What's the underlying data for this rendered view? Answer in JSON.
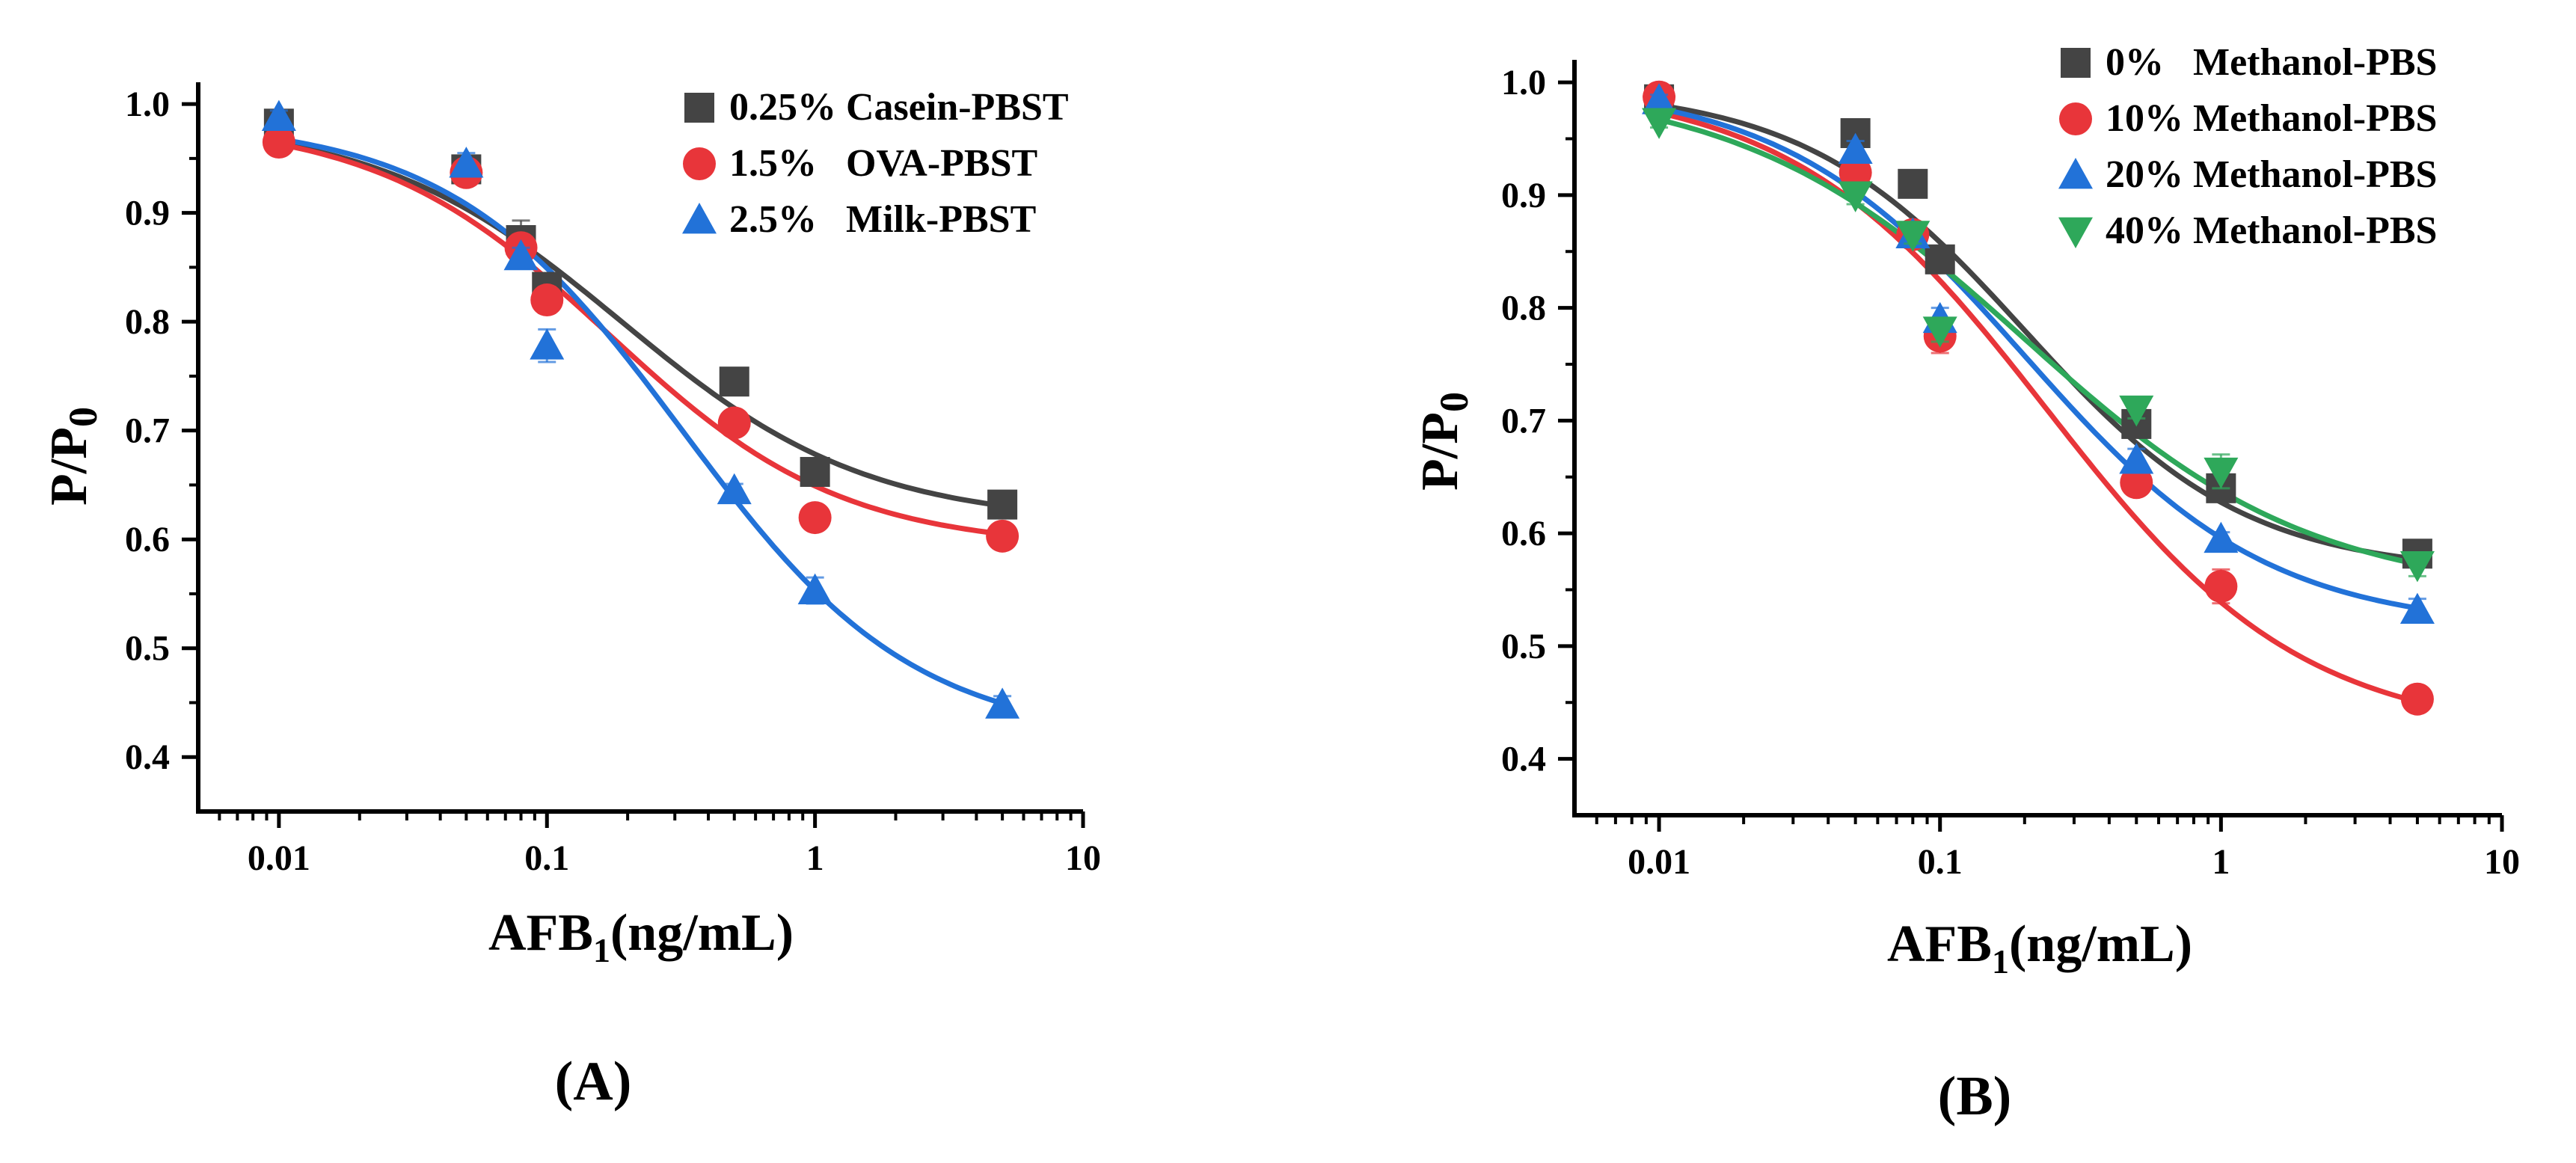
{
  "chart_data": [
    {
      "type": "scatter",
      "panel_label": "(A)",
      "xlabel_main": "AFB",
      "xlabel_sub": "1",
      "xlabel_unit": "(ng/mL)",
      "ylabel_main": "P/P",
      "ylabel_sub": "0",
      "xscale": "log",
      "xlim": [
        0.005,
        10
      ],
      "ylim": [
        0.35,
        1.02
      ],
      "xticks": [
        0.01,
        0.1,
        1,
        10
      ],
      "xtick_labels": [
        "0.01",
        "0.1",
        "1",
        "10"
      ],
      "yticks": [
        0.4,
        0.5,
        0.6,
        0.7,
        0.8,
        0.9,
        1.0
      ],
      "ytick_labels": [
        "0.4",
        "0.5",
        "0.6",
        "0.7",
        "0.8",
        "0.9",
        "1.0"
      ],
      "legend_position": "top-right",
      "series": [
        {
          "name": "0.25% Casein-PBST",
          "color": "#444444",
          "marker": "square",
          "x": [
            0.01,
            0.05,
            0.08,
            0.1,
            0.5,
            1,
            5
          ],
          "y": [
            0.982,
            0.94,
            0.875,
            0.832,
            0.745,
            0.662,
            0.632
          ],
          "err": [
            0.006,
            0.01,
            0.018,
            0.01,
            0.008,
            0.01,
            0.01
          ],
          "fit": {
            "top": 0.985,
            "bottom": 0.615,
            "ec50": 0.19,
            "hill": 0.95
          }
        },
        {
          "name": "1.5%   OVA-PBST",
          "color": "#e8353a",
          "marker": "circle",
          "x": [
            0.01,
            0.05,
            0.08,
            0.1,
            0.5,
            1,
            5
          ],
          "y": [
            0.965,
            0.937,
            0.868,
            0.82,
            0.707,
            0.62,
            0.603
          ],
          "err": [
            0.005,
            0.01,
            0.012,
            0.012,
            0.008,
            0.006,
            0.006
          ],
          "fit": {
            "top": 0.985,
            "bottom": 0.592,
            "ec50": 0.17,
            "hill": 1.0
          }
        },
        {
          "name": "2.5%   Milk-PBST",
          "color": "#2272d8",
          "marker": "triangle",
          "x": [
            0.01,
            0.05,
            0.08,
            0.1,
            0.5,
            1,
            5
          ],
          "y": [
            0.988,
            0.945,
            0.86,
            0.778,
            0.645,
            0.553,
            0.448
          ],
          "err": [
            0.006,
            0.01,
            0.008,
            0.015,
            0.006,
            0.012,
            0.008
          ],
          "fit": {
            "top": 0.985,
            "bottom": 0.415,
            "ec50": 0.32,
            "hill": 1.0
          }
        }
      ]
    },
    {
      "type": "scatter",
      "panel_label": "(B)",
      "xlabel_main": "AFB",
      "xlabel_sub": "1",
      "xlabel_unit": "(ng/mL)",
      "ylabel_main": "P/P",
      "ylabel_sub": "0",
      "xscale": "log",
      "xlim": [
        0.005,
        10
      ],
      "ylim": [
        0.35,
        1.02
      ],
      "xticks": [
        0.01,
        0.1,
        1,
        10
      ],
      "xtick_labels": [
        "0.01",
        "0.1",
        "1",
        "10"
      ],
      "yticks": [
        0.4,
        0.5,
        0.6,
        0.7,
        0.8,
        0.9,
        1.0
      ],
      "ytick_labels": [
        "0.4",
        "0.5",
        "0.6",
        "0.7",
        "0.8",
        "0.9",
        "1.0"
      ],
      "legend_position": "top-right",
      "series": [
        {
          "name": "0%   Methanol-PBS",
          "color": "#444444",
          "marker": "square",
          "x": [
            0.01,
            0.05,
            0.08,
            0.1,
            0.5,
            1,
            5
          ],
          "y": [
            0.985,
            0.955,
            0.91,
            0.843,
            0.697,
            0.64,
            0.582
          ],
          "err": [
            0.006,
            0.008,
            0.008,
            0.008,
            0.008,
            0.01,
            0.01
          ],
          "fit": {
            "top": 0.995,
            "bottom": 0.565,
            "ec50": 0.2,
            "hill": 1.1
          }
        },
        {
          "name": "10% Methanol-PBS",
          "color": "#e8353a",
          "marker": "circle",
          "x": [
            0.01,
            0.05,
            0.08,
            0.1,
            0.5,
            1,
            5
          ],
          "y": [
            0.987,
            0.92,
            0.865,
            0.775,
            0.645,
            0.553,
            0.453
          ],
          "err": [
            0.005,
            0.008,
            0.01,
            0.015,
            0.01,
            0.015,
            0.01
          ],
          "fit": {
            "top": 1.0,
            "bottom": 0.42,
            "ec50": 0.24,
            "hill": 0.95
          }
        },
        {
          "name": "20% Methanol-PBS",
          "color": "#2272d8",
          "marker": "triangle",
          "x": [
            0.01,
            0.05,
            0.08,
            0.1,
            0.5,
            1,
            5
          ],
          "y": [
            0.984,
            0.94,
            0.865,
            0.79,
            0.665,
            0.595,
            0.532
          ],
          "err": [
            0.005,
            0.008,
            0.008,
            0.01,
            0.01,
            0.006,
            0.01
          ],
          "fit": {
            "top": 1.0,
            "bottom": 0.515,
            "ec50": 0.2,
            "hill": 1.0
          }
        },
        {
          "name": "40% Methanol-PBS",
          "color": "#2ea85a",
          "marker": "triangle-down",
          "x": [
            0.01,
            0.05,
            0.08,
            0.1,
            0.5,
            1,
            5
          ],
          "y": [
            0.965,
            0.9,
            0.865,
            0.78,
            0.71,
            0.655,
            0.572
          ],
          "err": [
            0.005,
            0.008,
            0.008,
            0.01,
            0.008,
            0.015,
            0.01
          ],
          "fit": {
            "top": 1.0,
            "bottom": 0.545,
            "ec50": 0.2,
            "hill": 0.85
          }
        }
      ]
    }
  ]
}
